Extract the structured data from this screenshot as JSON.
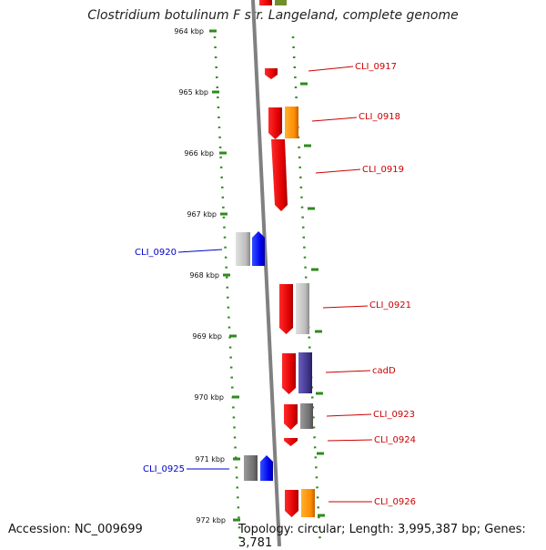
{
  "title": "Clostridium botulinum F str. Langeland, complete genome",
  "footer": {
    "accession": "Accession: NC_009699",
    "topology": "Topology: circular; Length: 3,995,387 bp; Genes: 3,781"
  },
  "axis_labels": [
    "964 kbp",
    "965 kbp",
    "966 kbp",
    "967 kbp",
    "968 kbp",
    "969 kbp",
    "970 kbp",
    "971 kbp",
    "972 kbp"
  ],
  "genes": [
    {
      "label": "CLI_0917",
      "label_color": "#cc0000"
    },
    {
      "label": "CLI_0918",
      "label_color": "#cc0000"
    },
    {
      "label": "CLI_0919",
      "label_color": "#cc0000"
    },
    {
      "label": "CLI_0920",
      "label_color": "#0000cc"
    },
    {
      "label": "CLI_0921",
      "label_color": "#cc0000"
    },
    {
      "label": "cadD",
      "label_color": "#cc0000"
    },
    {
      "label": "CLI_0923",
      "label_color": "#cc0000"
    },
    {
      "label": "CLI_0924",
      "label_color": "#cc0000"
    },
    {
      "label": "CLI_0925",
      "label_color": "#0000cc"
    },
    {
      "label": "CLI_0926",
      "label_color": "#cc0000"
    }
  ],
  "colors": {
    "backbone": "#808080",
    "dots": "#2e8b1e",
    "cds_red": "#ff0000",
    "cds_orange": "#ff9900",
    "cds_blue": "#0000ff",
    "cds_gray": "#888888",
    "cds_light_gray": "#c0c0c0",
    "cds_purple": "#4b3f9a"
  }
}
